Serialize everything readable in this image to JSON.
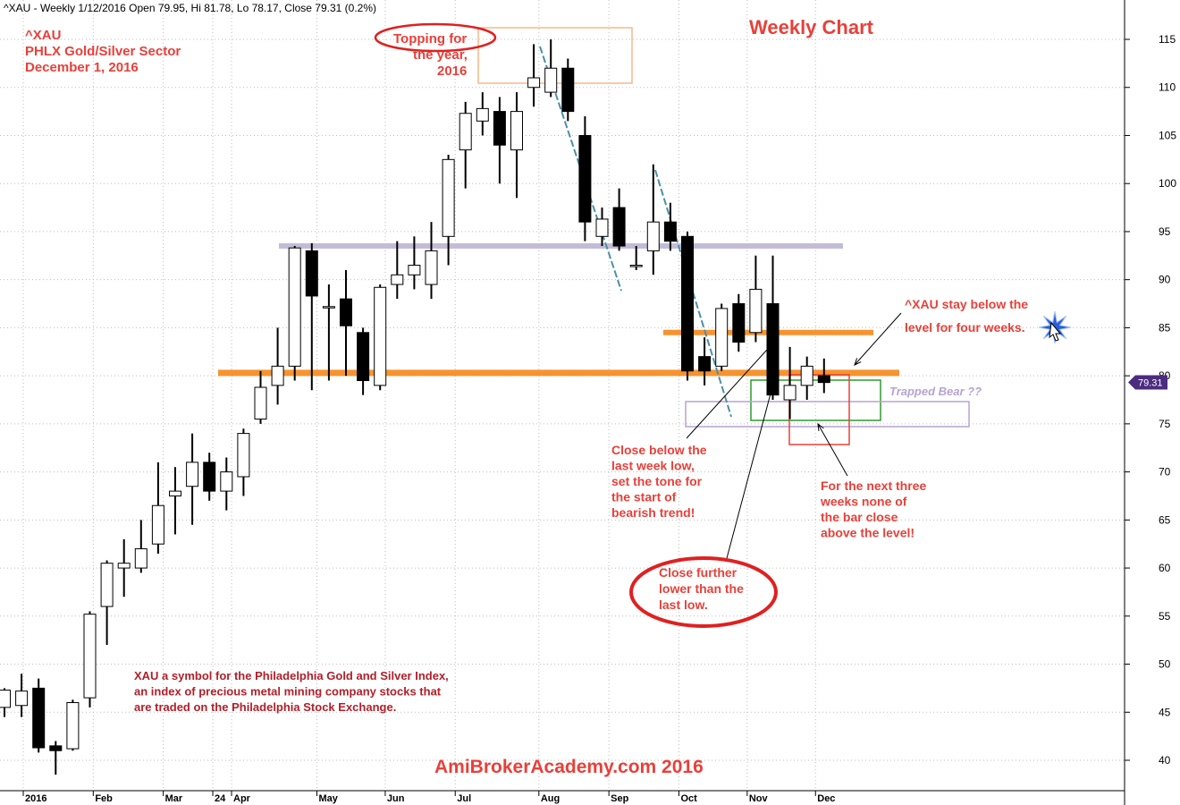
{
  "header": {
    "text": "^XAU - Weekly 1/12/2016 Open 79.95, Hi 81.78, Lo 78.17, Close 79.31 (0.2%)"
  },
  "chart_data": {
    "type": "candlestick",
    "title": "Weekly Chart",
    "subtitle_lines": [
      "^XAU",
      "PHLX Gold/Silver Sector",
      "December 1, 2016"
    ],
    "watermark": "AmiBrokerAcademy.com  2016",
    "ylim": [
      37,
      118
    ],
    "y_ticks": [
      40,
      45,
      50,
      55,
      60,
      65,
      70,
      75,
      80,
      85,
      90,
      95,
      100,
      105,
      110,
      115
    ],
    "x_ticks": [
      {
        "label": "2016",
        "bold": true
      },
      {
        "label": "Feb"
      },
      {
        "label": "Mar"
      },
      {
        "label": "24"
      },
      {
        "label": "Apr"
      },
      {
        "label": "May"
      },
      {
        "label": "Jun"
      },
      {
        "label": "Jul"
      },
      {
        "label": "Aug"
      },
      {
        "label": "Sep"
      },
      {
        "label": "Oct"
      },
      {
        "label": "Nov"
      },
      {
        "label": "Dec"
      }
    ],
    "last_price_label": "79.31",
    "candles": [
      {
        "o": 45.5,
        "h": 47.5,
        "l": 44.5,
        "c": 47.3
      },
      {
        "o": 45.7,
        "h": 49.0,
        "l": 44.5,
        "c": 47.2
      },
      {
        "o": 47.5,
        "h": 48.5,
        "l": 40.8,
        "c": 41.3
      },
      {
        "o": 41.5,
        "h": 42.0,
        "l": 38.5,
        "c": 41.0
      },
      {
        "o": 41.2,
        "h": 46.3,
        "l": 41.0,
        "c": 46.0
      },
      {
        "o": 46.5,
        "h": 55.5,
        "l": 45.5,
        "c": 55.2
      },
      {
        "o": 56.0,
        "h": 60.8,
        "l": 52.0,
        "c": 60.5
      },
      {
        "o": 60.0,
        "h": 63.0,
        "l": 57.0,
        "c": 60.5
      },
      {
        "o": 60.0,
        "h": 65.0,
        "l": 59.5,
        "c": 62.0
      },
      {
        "o": 62.5,
        "h": 71.0,
        "l": 61.5,
        "c": 66.5
      },
      {
        "o": 67.5,
        "h": 70.5,
        "l": 63.5,
        "c": 68.0
      },
      {
        "o": 68.5,
        "h": 74.0,
        "l": 64.5,
        "c": 71.0
      },
      {
        "o": 71.0,
        "h": 72.0,
        "l": 67.0,
        "c": 68.0
      },
      {
        "o": 68.0,
        "h": 71.5,
        "l": 66.0,
        "c": 70.0
      },
      {
        "o": 69.5,
        "h": 74.5,
        "l": 67.5,
        "c": 74.0
      },
      {
        "o": 75.5,
        "h": 80.5,
        "l": 75.0,
        "c": 78.8
      },
      {
        "o": 79.0,
        "h": 85.0,
        "l": 77.0,
        "c": 81.0
      },
      {
        "o": 81.0,
        "h": 93.5,
        "l": 79.5,
        "c": 93.3
      },
      {
        "o": 93.0,
        "h": 93.8,
        "l": 78.5,
        "c": 88.3
      },
      {
        "o": 87.2,
        "h": 89.5,
        "l": 79.5,
        "c": 87.2
      },
      {
        "o": 88.0,
        "h": 91.0,
        "l": 80.0,
        "c": 85.2
      },
      {
        "o": 84.5,
        "h": 85.0,
        "l": 78.0,
        "c": 79.5
      },
      {
        "o": 79.0,
        "h": 89.5,
        "l": 78.5,
        "c": 89.2
      },
      {
        "o": 89.5,
        "h": 94.0,
        "l": 88.0,
        "c": 90.5
      },
      {
        "o": 90.5,
        "h": 94.5,
        "l": 89.0,
        "c": 91.5
      },
      {
        "o": 89.5,
        "h": 96.0,
        "l": 88.0,
        "c": 93.0
      },
      {
        "o": 94.5,
        "h": 103.0,
        "l": 91.5,
        "c": 102.5
      },
      {
        "o": 103.5,
        "h": 108.5,
        "l": 99.5,
        "c": 107.3
      },
      {
        "o": 106.5,
        "h": 109.5,
        "l": 105.0,
        "c": 107.8
      },
      {
        "o": 107.5,
        "h": 109.0,
        "l": 100.0,
        "c": 104.0
      },
      {
        "o": 103.5,
        "h": 109.5,
        "l": 98.5,
        "c": 107.5
      },
      {
        "o": 110.0,
        "h": 114.5,
        "l": 108.0,
        "c": 111.0
      },
      {
        "o": 109.5,
        "h": 115.0,
        "l": 109.0,
        "c": 112.0
      },
      {
        "o": 112.0,
        "h": 113.0,
        "l": 106.5,
        "c": 107.5
      },
      {
        "o": 105.0,
        "h": 107.0,
        "l": 94.0,
        "c": 96.0
      },
      {
        "o": 94.5,
        "h": 97.5,
        "l": 93.5,
        "c": 96.3
      },
      {
        "o": 97.5,
        "h": 99.5,
        "l": 93.0,
        "c": 93.5
      },
      {
        "o": 91.5,
        "h": 93.5,
        "l": 91.0,
        "c": 91.5
      },
      {
        "o": 93.0,
        "h": 102.0,
        "l": 90.5,
        "c": 96.0
      },
      {
        "o": 96.0,
        "h": 98.0,
        "l": 93.0,
        "c": 94.0
      },
      {
        "o": 94.5,
        "h": 95.0,
        "l": 79.5,
        "c": 80.5
      },
      {
        "o": 82.0,
        "h": 84.0,
        "l": 79.0,
        "c": 80.5
      },
      {
        "o": 81.0,
        "h": 87.5,
        "l": 80.5,
        "c": 87.0
      },
      {
        "o": 87.5,
        "h": 88.5,
        "l": 82.5,
        "c": 83.5
      },
      {
        "o": 84.5,
        "h": 92.5,
        "l": 83.5,
        "c": 89.0
      },
      {
        "o": 87.5,
        "h": 92.5,
        "l": 77.5,
        "c": 78.0
      },
      {
        "o": 77.5,
        "h": 83.0,
        "l": 75.5,
        "c": 79.0
      },
      {
        "o": 79.0,
        "h": 82.0,
        "l": 77.5,
        "c": 81.0
      },
      {
        "o": 80.0,
        "h": 81.8,
        "l": 78.2,
        "c": 79.3
      }
    ],
    "levels": [
      {
        "name": "resistance-level",
        "value": 93.5,
        "color": "#c3bcd8"
      },
      {
        "name": "upper-orange-level",
        "value": 84.5,
        "color": "#f7932f"
      },
      {
        "name": "lower-orange-level",
        "value": 80.3,
        "color": "#f7932f"
      }
    ],
    "annotations": {
      "topping": "Topping for\nthe year,\n2016",
      "close_below": "Close below the\nlast week low,\nset the tone for\nthe start of\nbearish trend!",
      "next_three": "For the next three\nweeks none of\nthe bar close\nabove the level!",
      "close_further": "Close further\nlower than the\nlast low.",
      "stay_below": "^XAU stay below the\nlevel for four weeks.",
      "trapped": "Trapped Bear ??",
      "xau_note": "XAU a symbol for the Philadelphia Gold and Silver Index,\nan index of precious metal mining company stocks that\nare traded on the Philadelphia Stock Exchange."
    },
    "colors": {
      "accent_red": "#e8403a",
      "dark_red": "#b0202a",
      "orange": "#f7932f",
      "purple_level": "#c3bcd8",
      "trend_line": "#4a90a8",
      "last_price_badge": "#4b2c7f"
    }
  }
}
